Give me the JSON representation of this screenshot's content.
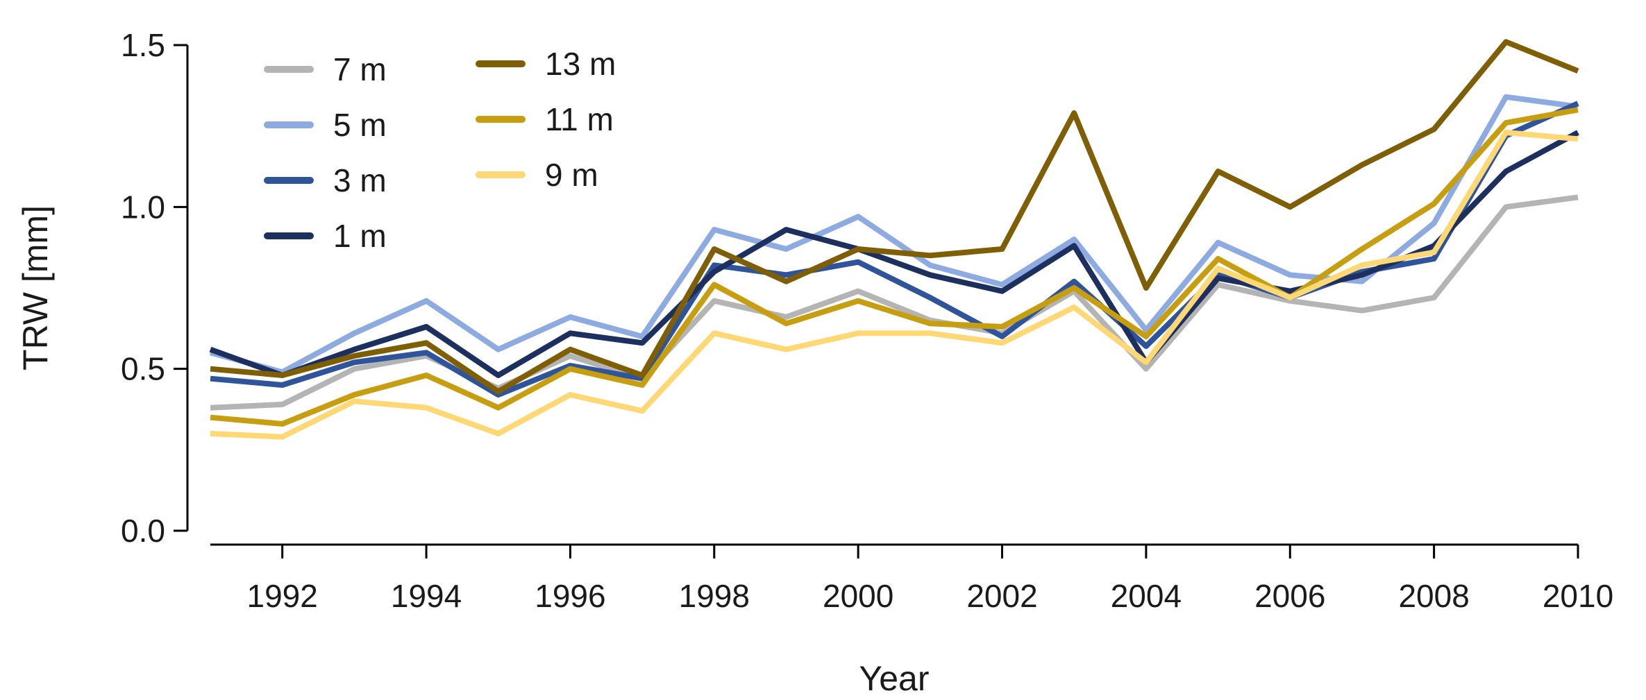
{
  "chart_data": {
    "type": "line",
    "title": "",
    "xlabel": "Year",
    "ylabel": "TRW [mm]",
    "xlim": [
      1991,
      2010
    ],
    "ylim": [
      0.0,
      1.5
    ],
    "x": [
      1991,
      1992,
      1993,
      1994,
      1995,
      1996,
      1997,
      1998,
      1999,
      2000,
      2001,
      2002,
      2003,
      2004,
      2005,
      2006,
      2007,
      2008,
      2009,
      2010
    ],
    "x_ticks": [
      1992,
      1994,
      1996,
      1998,
      2000,
      2002,
      2004,
      2006,
      2008,
      2010
    ],
    "x_tick_labels": [
      "1992",
      "1994",
      "1996",
      "1998",
      "2000",
      "2002",
      "2004",
      "2006",
      "2008",
      "2010"
    ],
    "y_ticks": [
      0.0,
      0.5,
      1.0,
      1.5
    ],
    "y_tick_labels": [
      "0.0",
      "0.5",
      "1.0",
      "1.5"
    ],
    "grid": false,
    "legend_position": "top-left",
    "series": [
      {
        "name": "7 m",
        "color": "#b4b4b4",
        "values": [
          0.38,
          0.39,
          0.5,
          0.54,
          0.44,
          0.54,
          0.47,
          0.71,
          0.66,
          0.74,
          0.65,
          0.61,
          0.74,
          0.5,
          0.76,
          0.71,
          0.68,
          0.72,
          1.0,
          1.03
        ]
      },
      {
        "name": "5 m",
        "color": "#8dabe0",
        "values": [
          0.55,
          0.49,
          0.61,
          0.71,
          0.56,
          0.66,
          0.6,
          0.93,
          0.87,
          0.97,
          0.82,
          0.76,
          0.9,
          0.62,
          0.89,
          0.79,
          0.77,
          0.95,
          1.34,
          1.31
        ]
      },
      {
        "name": "3 m",
        "color": "#2f549c",
        "values": [
          0.47,
          0.45,
          0.52,
          0.55,
          0.42,
          0.51,
          0.47,
          0.82,
          0.79,
          0.83,
          0.72,
          0.6,
          0.77,
          0.57,
          0.79,
          0.72,
          0.8,
          0.84,
          1.22,
          1.32
        ]
      },
      {
        "name": "1 m",
        "color": "#1c2f5e",
        "values": [
          0.56,
          0.48,
          0.56,
          0.63,
          0.48,
          0.61,
          0.58,
          0.8,
          0.93,
          0.87,
          0.79,
          0.74,
          0.88,
          0.52,
          0.78,
          0.74,
          0.79,
          0.88,
          1.11,
          1.23
        ]
      },
      {
        "name": "13 m",
        "color": "#7f5f06",
        "values": [
          0.5,
          0.48,
          0.54,
          0.58,
          0.43,
          0.56,
          0.48,
          0.87,
          0.77,
          0.87,
          0.85,
          0.87,
          1.29,
          0.75,
          1.11,
          1.0,
          1.13,
          1.24,
          1.51,
          1.42
        ]
      },
      {
        "name": "11 m",
        "color": "#c79e10",
        "values": [
          0.35,
          0.33,
          0.42,
          0.48,
          0.38,
          0.5,
          0.45,
          0.76,
          0.64,
          0.71,
          0.64,
          0.63,
          0.75,
          0.6,
          0.84,
          0.72,
          0.87,
          1.01,
          1.26,
          1.3
        ]
      },
      {
        "name": "9 m",
        "color": "#fdd875",
        "values": [
          0.3,
          0.29,
          0.4,
          0.38,
          0.3,
          0.42,
          0.37,
          0.61,
          0.56,
          0.61,
          0.61,
          0.58,
          0.69,
          0.52,
          0.81,
          0.72,
          0.82,
          0.86,
          1.23,
          1.21
        ]
      }
    ],
    "legend_columns": [
      [
        "7 m",
        "5 m",
        "3 m",
        "1 m"
      ],
      [
        "13 m",
        "11 m",
        "9 m"
      ]
    ]
  }
}
